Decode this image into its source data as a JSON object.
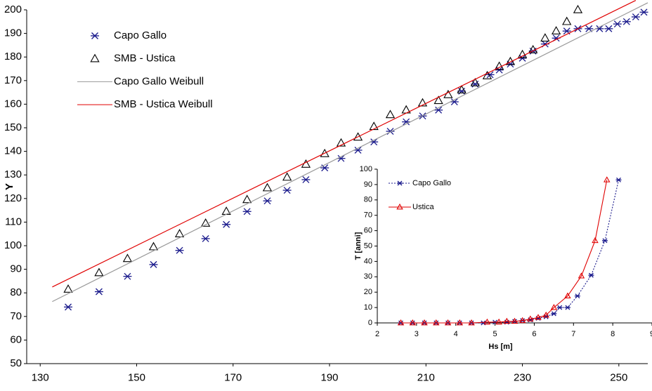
{
  "chart_data": [
    {
      "type": "scatter",
      "y_label": "Y",
      "xlim": [
        127.2,
        256
      ],
      "xticks": [
        130,
        150,
        170,
        190,
        210,
        230,
        250
      ],
      "ylim": [
        50,
        200
      ],
      "yticks": [
        50,
        60,
        70,
        80,
        90,
        100,
        110,
        120,
        130,
        140,
        150,
        160,
        170,
        180,
        190,
        200
      ],
      "series": [
        {
          "name": "Capo Gallo",
          "color": "#1a1a8c",
          "marker": "asterisk",
          "line": false,
          "x": [
            135.8,
            142.2,
            148.1,
            153.5,
            158.9,
            164.3,
            168.6,
            172.9,
            177.1,
            181.2,
            185.1,
            189.0,
            192.4,
            195.9,
            199.2,
            202.6,
            205.9,
            209.3,
            212.6,
            215.9,
            217.4,
            220.2,
            223.3,
            225.2,
            227.5,
            230.0,
            232.2,
            234.7,
            237.0,
            239.2,
            241.5,
            243.8,
            246.0,
            247.9,
            249.7,
            251.6,
            253.5,
            255.2
          ],
          "values": [
            74,
            80.5,
            87,
            92,
            98,
            103,
            109,
            114.5,
            119,
            123.5,
            128,
            133,
            137,
            140.5,
            144,
            148.5,
            152.5,
            155,
            157.5,
            161,
            165.5,
            168.5,
            172.5,
            174.5,
            177,
            179.5,
            182.5,
            185.5,
            188,
            191,
            192,
            192,
            192,
            192,
            194,
            195,
            197,
            199
          ]
        },
        {
          "name": "SMB - Ustica",
          "color": "#000000",
          "marker": "triangle",
          "line": false,
          "x": [
            135.8,
            142.2,
            148.1,
            153.5,
            158.9,
            164.3,
            168.6,
            172.9,
            177.1,
            181.2,
            185.1,
            189.0,
            192.4,
            195.9,
            199.2,
            202.6,
            205.9,
            209.3,
            212.6,
            214.6,
            217.4,
            220.2,
            222.7,
            225.2,
            227.5,
            230.0,
            232.2,
            234.7,
            237.0,
            239.2,
            241.5
          ],
          "values": [
            81.5,
            88.5,
            94.5,
            99.5,
            105,
            109.5,
            114.5,
            119.5,
            124.5,
            129,
            134.5,
            139,
            143.5,
            146,
            150.5,
            155.5,
            157.5,
            160.5,
            161.5,
            164,
            166,
            169,
            172,
            176,
            178,
            181,
            183,
            188,
            191,
            195,
            200
          ]
        },
        {
          "name": "Capo Gallo Weibull",
          "color": "#999999",
          "marker": "none",
          "line": true,
          "x": [
            132.5,
            256
          ],
          "values": [
            76.3,
            203
          ]
        },
        {
          "name": "SMB - Ustica Weibull",
          "color": "#e00000",
          "marker": "none",
          "line": true,
          "x": [
            132.5,
            253.5
          ],
          "values": [
            82.5,
            204
          ]
        }
      ]
    },
    {
      "type": "line",
      "x_label": "Hs [m]",
      "y_label": "T [anni]",
      "xlim": [
        2,
        9
      ],
      "xticks": [
        2,
        3,
        4,
        5,
        6,
        7,
        8,
        9
      ],
      "ylim": [
        0,
        100
      ],
      "yticks": [
        0,
        10,
        20,
        30,
        40,
        50,
        60,
        70,
        80,
        90,
        100
      ],
      "series": [
        {
          "name": "Capo Gallo",
          "color": "#1a1a8c",
          "marker": "asterisk",
          "line": true,
          "dash": true,
          "x": [
            2.6,
            2.9,
            3.2,
            3.5,
            3.8,
            4.1,
            4.4,
            4.7,
            5.0,
            5.3,
            5.5,
            5.7,
            5.9,
            6.1,
            6.3,
            6.5,
            6.65,
            6.85,
            7.1,
            7.45,
            7.8,
            8.15
          ],
          "values": [
            0,
            0,
            0,
            0,
            0,
            0,
            0,
            0,
            0.5,
            0.5,
            1,
            1.5,
            2,
            3,
            4,
            6,
            10,
            10,
            17.5,
            31,
            53.5,
            93
          ]
        },
        {
          "name": "Ustica",
          "color": "#e00000",
          "marker": "triangle",
          "line": true,
          "dash": false,
          "x": [
            2.6,
            2.9,
            3.2,
            3.5,
            3.8,
            4.1,
            4.4,
            4.8,
            5.1,
            5.3,
            5.5,
            5.7,
            5.9,
            6.1,
            6.3,
            6.5,
            6.85,
            7.2,
            7.55,
            7.85
          ],
          "values": [
            0,
            0,
            0,
            0,
            0,
            0,
            0,
            0.5,
            0.5,
            1,
            1,
            1.5,
            2.5,
            3.5,
            5,
            10,
            17.5,
            30.5,
            53.5,
            93
          ]
        }
      ]
    }
  ]
}
